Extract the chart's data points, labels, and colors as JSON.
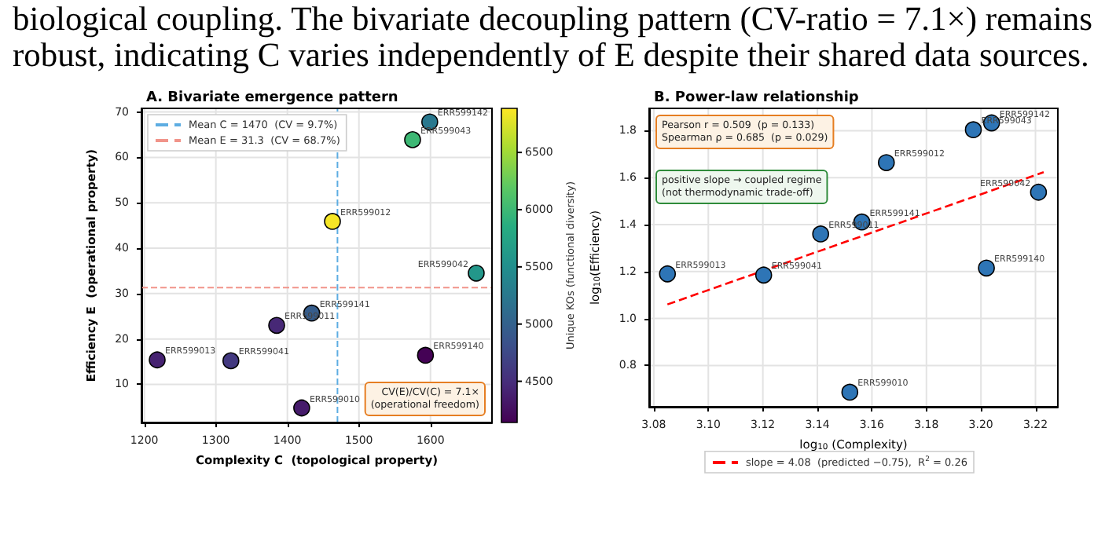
{
  "chart_data": [
    {
      "type": "scatter",
      "title": "A. Bivariate emergence pattern",
      "xlabel": "Complexity C  (topological property)",
      "ylabel": "Efficiency E  (operational property)",
      "clabel": "Unique KOs (functional diversity)",
      "x": [
        1218,
        1321,
        1385,
        1434,
        1463,
        1575,
        1599,
        1664,
        1593,
        1420
      ],
      "values": [
        15.4,
        15.2,
        23.0,
        25.7,
        45.9,
        63.9,
        67.8,
        34.5,
        16.4,
        4.8
      ],
      "cvalues": [
        4400,
        4600,
        4450,
        4950,
        6850,
        6000,
        5250,
        5600,
        4150,
        4350
      ],
      "clim": [
        4140,
        6885
      ],
      "cticks": [
        4500,
        5000,
        5500,
        6000,
        6500
      ],
      "xlim": [
        1196,
        1686
      ],
      "xticks": [
        1200,
        1300,
        1400,
        1500,
        1600
      ],
      "ylim": [
        1.6,
        70.8
      ],
      "yticks": [
        10,
        20,
        30,
        40,
        50,
        60,
        70
      ],
      "ref_lines": [
        {
          "axis": "x",
          "value": 1470,
          "label": "Mean C = 1470  (CV = 9.7%)",
          "color": "#5dade2",
          "line_style": "dashed"
        },
        {
          "axis": "y",
          "value": 31.3,
          "label": "Mean E = 31.3  (CV = 68.7%)",
          "color": "#f1948a",
          "line_style": "dashed"
        }
      ],
      "annotations": [
        "biological coupling.  The bivariate decoupling pattern (CV-ratio = 7.1×) remains robust, indicating C varies independently of E despite their shared data sources.",
        "CV(E)/CV(C) = 7.1×\n(operational freedom)",
        {
          "text": "ERR599013",
          "x": 1218,
          "y": 15.4
        },
        {
          "text": "ERR599041",
          "x": 1321,
          "y": 15.2
        },
        {
          "text": "ERR599011",
          "x": 1385,
          "y": 23.0
        },
        {
          "text": "ERR599141",
          "x": 1434,
          "y": 25.7
        },
        {
          "text": "ERR599012",
          "x": 1463,
          "y": 45.9
        },
        {
          "text": "ERR599043",
          "x": 1575,
          "y": 63.9
        },
        {
          "text": "ERR599142",
          "x": 1599,
          "y": 67.8
        },
        {
          "text": "ERR599042",
          "x": 1664,
          "y": 34.5
        },
        {
          "text": "ERR599140",
          "x": 1593,
          "y": 16.4
        },
        {
          "text": "ERR599010",
          "x": 1420,
          "y": 4.8
        }
      ],
      "grid": true,
      "legend": "top left",
      "marker": "circle"
    },
    {
      "type": "scatter",
      "title": "B. Power-law relationship",
      "xlabel": "log$_{10}$ (Complexity)",
      "ylabel": "log$_{10}$(Efficiency)",
      "xlim": [
        3.0783,
        3.2282
      ],
      "xticks": [
        {
          "value": 3.08,
          "label": "3.08"
        },
        {
          "value": 3.1,
          "label": "3.10"
        },
        {
          "value": 3.12,
          "label": "3.12"
        },
        {
          "value": 3.14,
          "label": "3.14"
        },
        {
          "value": 3.16,
          "label": "3.16"
        },
        {
          "value": 3.18,
          "label": "3.18"
        },
        {
          "value": 3.2,
          "label": "3.20"
        },
        {
          "value": 3.22,
          "label": "3.22"
        }
      ],
      "ylim": [
        0.624,
        1.895
      ],
      "yticks": [
        0.8,
        {
          "value": 1.0,
          "label": "1.0"
        },
        1.2,
        1.4,
        1.6,
        1.8
      ],
      "series": [
        {
          "color": "#2e75b6",
          "x": [
            3.085,
            3.1203,
            3.1412,
            3.1563,
            3.1653,
            3.1972,
            3.2039,
            3.2211,
            3.202,
            3.1519
          ],
          "values": [
            1.19,
            1.185,
            1.36,
            1.411,
            1.664,
            1.804,
            1.833,
            1.538,
            1.215,
            0.686
          ]
        },
        {
          "type": "line",
          "name": "slope = 4.08  (predicted −0.75),  R$^{2}$ = 0.26",
          "color": "#ff0000",
          "line_style": "dashed",
          "marker": "none",
          "x": [
            3.085,
            3.223
          ],
          "values": [
            1.06,
            1.623
          ]
        }
      ],
      "annotations": [
        "Pearson r = 0.509  (p = 0.133)\nSpearman ρ = 0.685  (p = 0.029)",
        "positive slope → coupled regime\n(not thermodynamic trade-off)",
        {
          "text": "ERR599013",
          "x": 3.085,
          "y": 1.19
        },
        {
          "text": "ERR599041",
          "x": 3.1203,
          "y": 1.185
        },
        {
          "text": "ERR599011",
          "x": 3.1412,
          "y": 1.36
        },
        {
          "text": "ERR599141",
          "x": 3.1563,
          "y": 1.411
        },
        {
          "text": "ERR599012",
          "x": 3.1653,
          "y": 1.664
        },
        {
          "text": "ERR599043",
          "x": 3.1972,
          "y": 1.804
        },
        {
          "text": "ERR599142",
          "x": 3.2039,
          "y": 1.833
        },
        {
          "text": "ERR599042",
          "x": 3.2211,
          "y": 1.538
        },
        {
          "text": "ERR599140",
          "x": 3.202,
          "y": 1.215
        },
        {
          "text": "ERR599010",
          "x": 3.1519,
          "y": 0.686
        }
      ],
      "grid": true,
      "legend": "bottom",
      "marker": "circle"
    }
  ]
}
